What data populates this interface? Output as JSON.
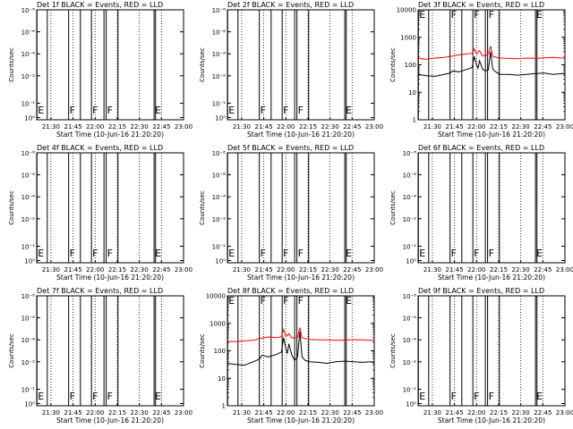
{
  "colors": {
    "events": "#000000",
    "lld": "#ff0000",
    "background": "#ffffff"
  },
  "shared": {
    "ylabel": "Counts/sec",
    "xlabel": "Start Time (10-Jun-16 21:20:20)",
    "x_tick_labels": [
      "21:30",
      "21:45",
      "22:00",
      "22:15",
      "22:30",
      "22:45",
      "23:00"
    ],
    "x_tick_minutes": [
      30,
      45,
      60,
      75,
      90,
      105,
      120
    ],
    "x_range_minutes": [
      20.33,
      120
    ],
    "empty_y_tick_labels": [
      "10⁻⁸",
      "10⁻⁶",
      "10⁻⁴",
      "10⁻²",
      "10⁻¹",
      "10⁰"
    ],
    "full_y_tick_labels": [
      "10000",
      "1000",
      "100",
      "10",
      "1"
    ],
    "dotted_grid_minutes": [
      30,
      45,
      60,
      75,
      90,
      105,
      120
    ],
    "bands": [
      {
        "label": "E",
        "start": 20.5,
        "end": 27.5
      },
      {
        "label": "F",
        "start": 42.0,
        "end": 50.0
      },
      {
        "label": "F",
        "start": 57.5,
        "end": 66.0
      },
      {
        "label": "F",
        "start": 67.5,
        "end": 75.5
      },
      {
        "label": "E",
        "start": 100.0,
        "end": 101.0
      }
    ]
  },
  "chart_data": [
    {
      "type": "line",
      "title": "Det  1f BLACK = Events, RED = LLD",
      "yscale": "none",
      "series": []
    },
    {
      "type": "line",
      "title": "Det  2f BLACK = Events, RED = LLD",
      "yscale": "none",
      "series": []
    },
    {
      "type": "line",
      "title": "Det  3f BLACK = Events, RED = LLD",
      "yscale": "log",
      "ylim": [
        1,
        10000
      ],
      "series": [
        {
          "color": "#ff0000",
          "x": [
            20.5,
            26,
            32,
            38,
            42,
            48,
            54,
            57,
            58.5,
            60,
            62,
            64,
            66,
            68,
            69.5,
            71,
            73,
            76,
            82,
            88,
            94,
            100,
            106,
            112,
            118,
            120
          ],
          "y": [
            170,
            160,
            175,
            185,
            200,
            230,
            250,
            260,
            380,
            250,
            330,
            210,
            220,
            240,
            480,
            200,
            190,
            175,
            170,
            165,
            175,
            170,
            180,
            185,
            175,
            170
          ]
        },
        {
          "color": "#000000",
          "x": [
            20.5,
            26,
            32,
            38,
            42,
            44,
            48,
            54,
            57,
            58.5,
            60,
            61,
            62,
            64,
            66,
            68,
            69.5,
            71,
            73,
            76,
            82,
            88,
            94,
            100,
            106,
            112,
            118,
            120
          ],
          "y": [
            45,
            40,
            38,
            45,
            50,
            60,
            55,
            70,
            80,
            200,
            100,
            75,
            140,
            70,
            60,
            65,
            300,
            70,
            55,
            45,
            45,
            42,
            45,
            48,
            50,
            45,
            48,
            45
          ]
        }
      ]
    },
    {
      "type": "line",
      "title": "Det  4f BLACK = Events, RED = LLD",
      "yscale": "none",
      "series": []
    },
    {
      "type": "line",
      "title": "Det  5f BLACK = Events, RED = LLD",
      "yscale": "none",
      "series": []
    },
    {
      "type": "line",
      "title": "Det  6f BLACK = Events, RED = LLD",
      "yscale": "none",
      "series": []
    },
    {
      "type": "line",
      "title": "Det  7f BLACK = Events, RED = LLD",
      "yscale": "none",
      "series": []
    },
    {
      "type": "line",
      "title": "Det  8f BLACK = Events, RED = LLD",
      "yscale": "log",
      "ylim": [
        1,
        10000
      ],
      "series": [
        {
          "color": "#ff0000",
          "x": [
            20.5,
            26,
            32,
            38,
            42,
            48,
            54,
            57,
            58.5,
            60,
            62,
            64,
            66,
            68,
            69.5,
            71,
            73,
            76,
            82,
            88,
            94,
            100,
            106,
            112,
            118,
            120
          ],
          "y": [
            220,
            215,
            230,
            240,
            280,
            320,
            300,
            330,
            600,
            330,
            420,
            300,
            290,
            310,
            700,
            300,
            280,
            260,
            250,
            250,
            240,
            245,
            255,
            250,
            240,
            235
          ]
        },
        {
          "color": "#000000",
          "x": [
            20.5,
            26,
            32,
            38,
            42,
            44,
            48,
            54,
            57,
            58.5,
            60,
            61,
            62,
            64,
            66,
            68,
            69.5,
            71,
            73,
            76,
            82,
            88,
            94,
            100,
            106,
            112,
            118,
            120
          ],
          "y": [
            35,
            32,
            30,
            40,
            50,
            70,
            60,
            75,
            90,
            300,
            120,
            80,
            180,
            70,
            45,
            60,
            500,
            60,
            45,
            40,
            38,
            35,
            40,
            42,
            40,
            38,
            40,
            35
          ]
        }
      ]
    },
    {
      "type": "line",
      "title": "Det  9f BLACK = Events, RED = LLD",
      "yscale": "none",
      "series": []
    }
  ]
}
